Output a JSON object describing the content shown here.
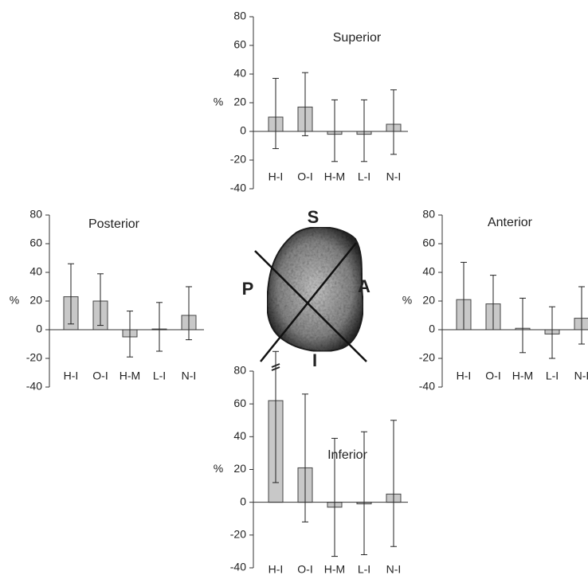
{
  "chart_data": [
    {
      "type": "bar",
      "title": "Superior",
      "y_label": "%",
      "categories": [
        "H-I",
        "O-I",
        "H-M",
        "L-I",
        "N-I"
      ],
      "values": [
        10,
        17,
        -2,
        -2,
        5
      ],
      "error_low": [
        -12,
        -3,
        -21,
        -21,
        -16
      ],
      "error_high": [
        37,
        41,
        22,
        22,
        29
      ],
      "ylim": [
        -40,
        80
      ],
      "yticks": [
        -40,
        -20,
        0,
        20,
        40,
        60,
        80
      ],
      "color": "#c8c8c8"
    },
    {
      "type": "bar",
      "title": "Posterior",
      "y_label": "%",
      "categories": [
        "H-I",
        "O-I",
        "H-M",
        "L-I",
        "N-I"
      ],
      "values": [
        23,
        20,
        -5,
        0.5,
        10
      ],
      "error_low": [
        4,
        3,
        -19,
        -15,
        -7
      ],
      "error_high": [
        46,
        39,
        13,
        19,
        30
      ],
      "ylim": [
        -40,
        80
      ],
      "yticks": [
        -40,
        -20,
        0,
        20,
        40,
        60,
        80
      ],
      "color": "#c8c8c8"
    },
    {
      "type": "bar",
      "title": "Anterior",
      "y_label": "%",
      "categories": [
        "H-I",
        "O-I",
        "H-M",
        "L-I",
        "N-I"
      ],
      "values": [
        21,
        18,
        1,
        -3,
        8
      ],
      "error_low": [
        0,
        0,
        -16,
        -20,
        -10
      ],
      "error_high": [
        47,
        38,
        22,
        16,
        30
      ],
      "ylim": [
        -40,
        80
      ],
      "yticks": [
        -40,
        -20,
        0,
        20,
        40,
        60,
        80
      ],
      "color": "#c8c8c8"
    },
    {
      "type": "bar",
      "title": "Inferior",
      "y_label": "%",
      "categories": [
        "H-I",
        "O-I",
        "H-M",
        "L-I",
        "N-I"
      ],
      "values": [
        62,
        21,
        -3,
        -1,
        5
      ],
      "error_low": [
        12,
        -12,
        -33,
        -32,
        -27
      ],
      "error_high": [
        92,
        66,
        39,
        43,
        50
      ],
      "ylim": [
        -40,
        80
      ],
      "yticks": [
        -40,
        -20,
        0,
        20,
        40,
        60,
        80
      ],
      "color": "#c8c8c8"
    }
  ],
  "diagram": {
    "labels": [
      "S",
      "P",
      "A",
      "I"
    ]
  }
}
